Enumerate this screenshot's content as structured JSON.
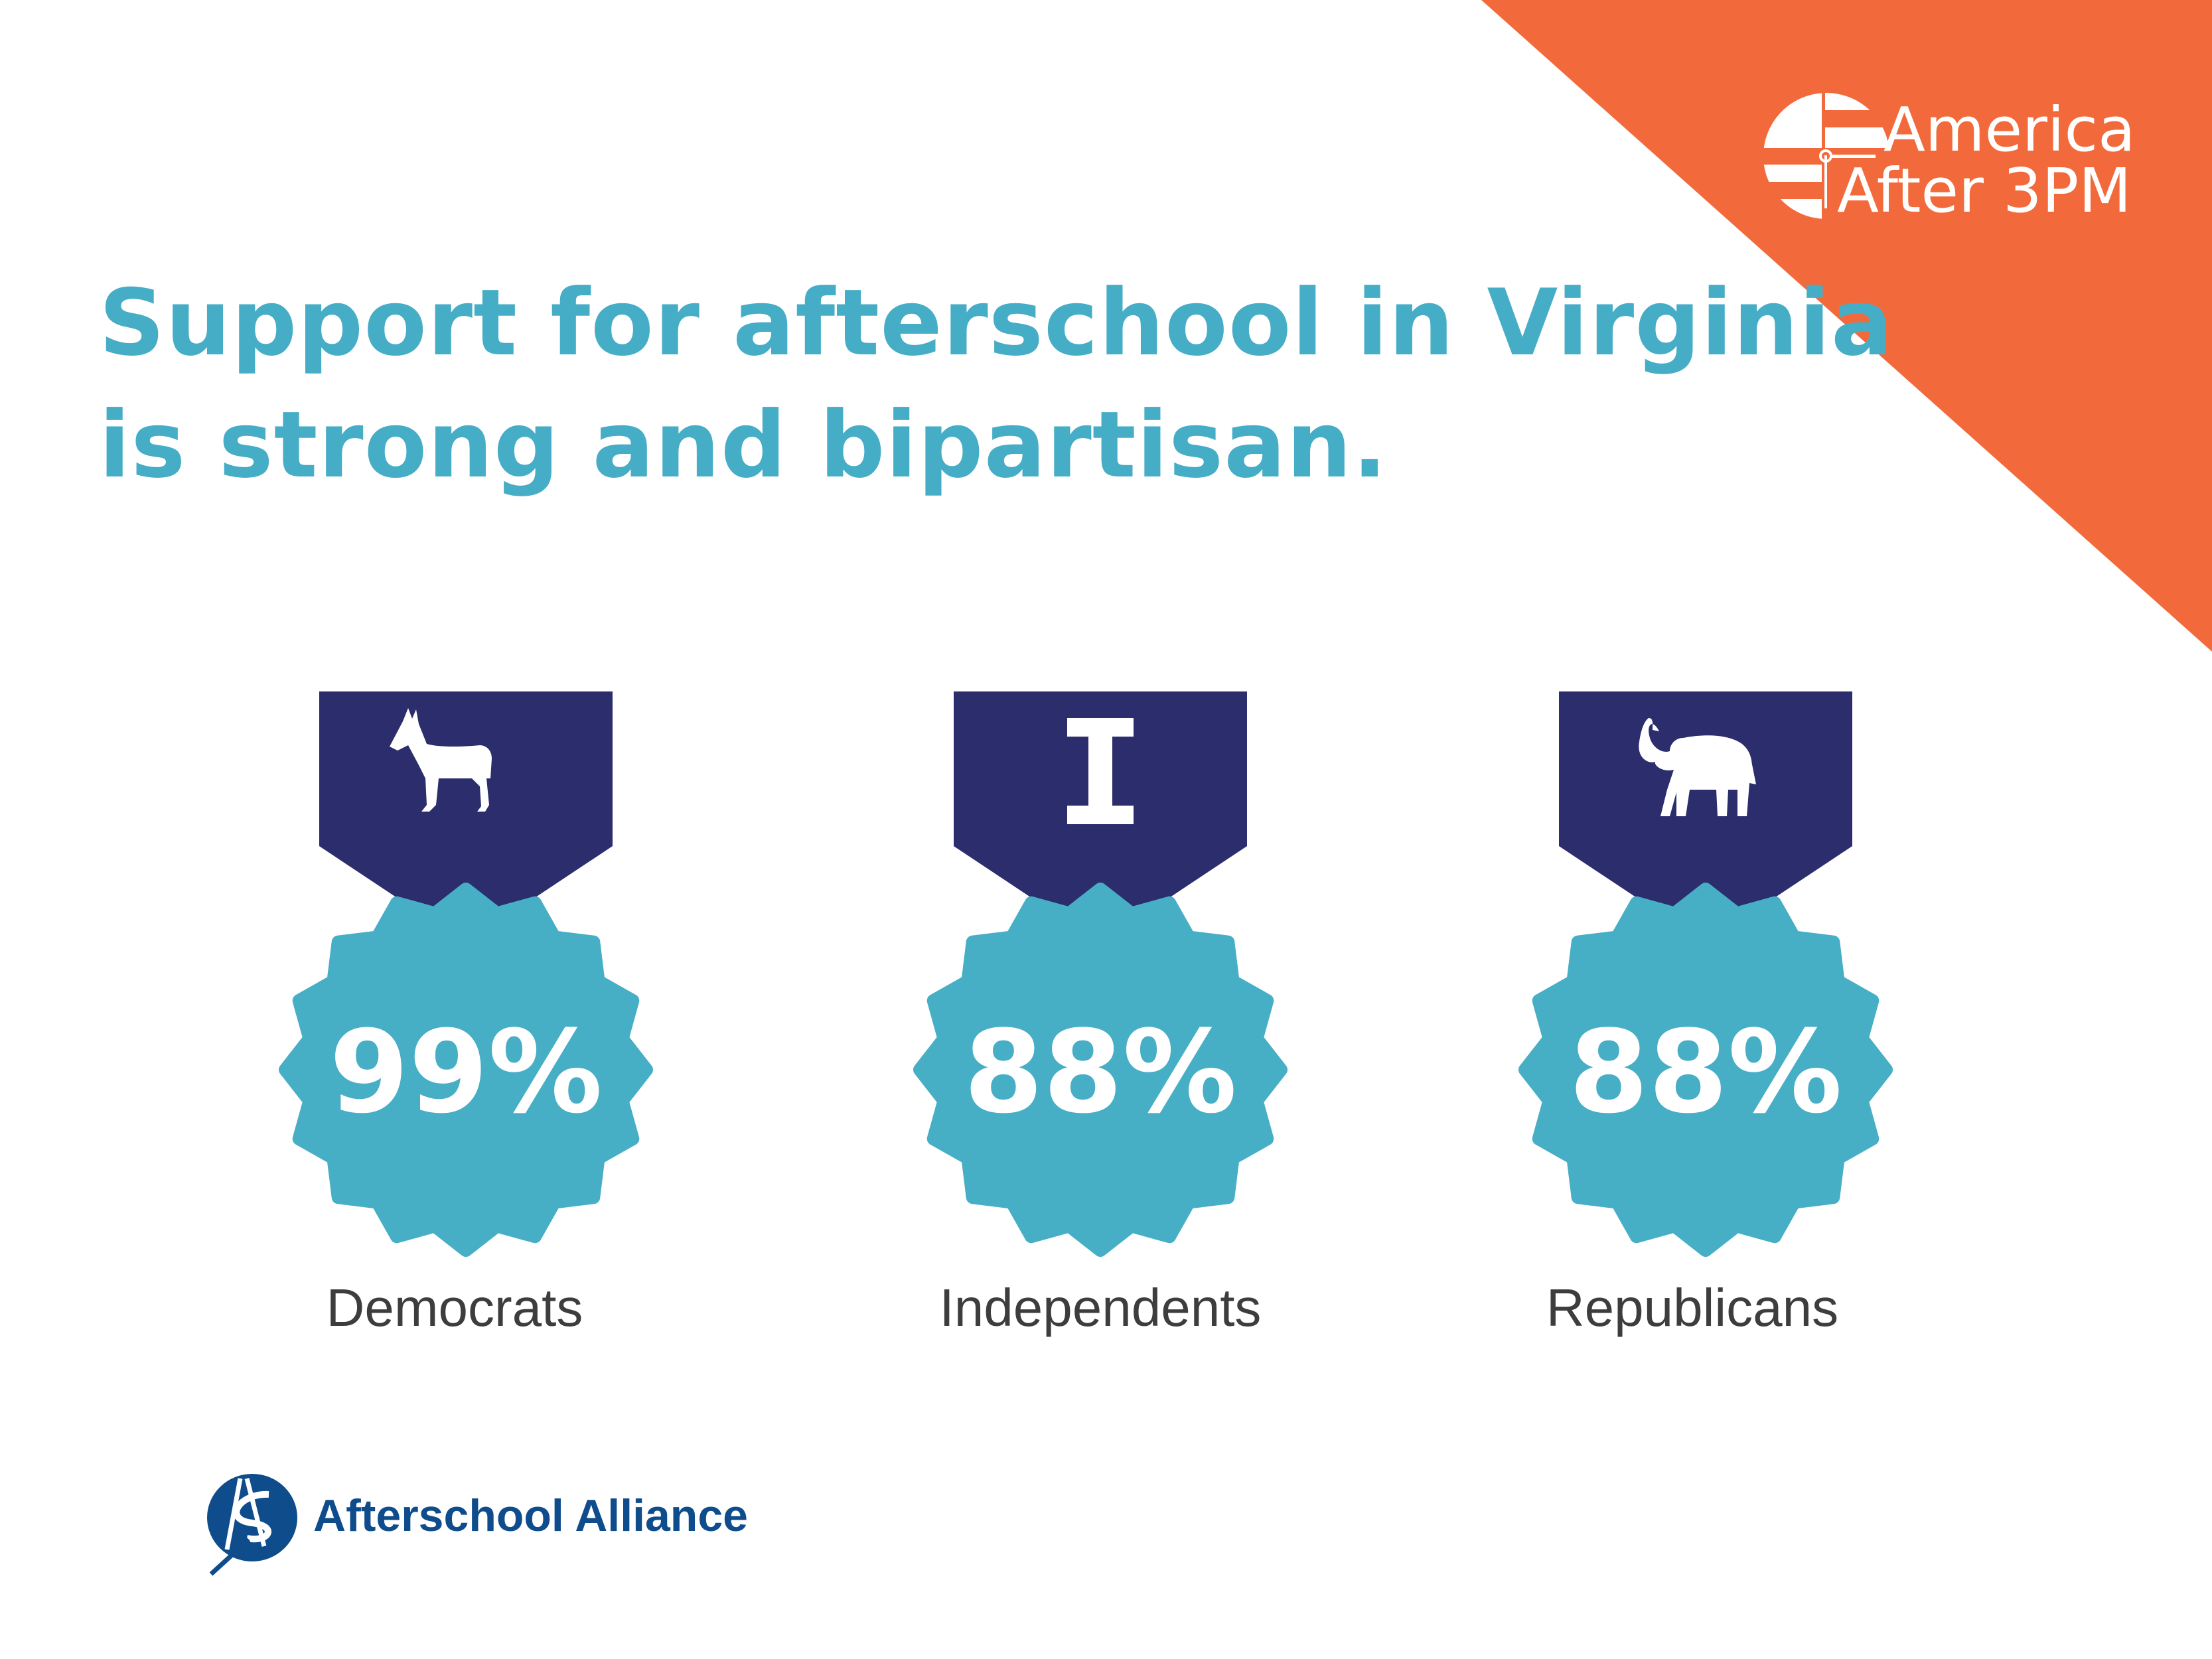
{
  "colors": {
    "orange": "#f26a3b",
    "teal": "#46aec5",
    "navy": "#2b2d6c",
    "title": "#46adc6",
    "label_text": "#3d3d3d",
    "alliance_blue": "#0f4c8c"
  },
  "brand_logo": {
    "line1": "America",
    "line2": "After 3PM"
  },
  "title": {
    "line1": "Support for afterschool in Virginia",
    "line2": "is strong and bipartisan."
  },
  "badges": [
    {
      "label": "Democrats",
      "value": "99%",
      "icon": "donkey-icon"
    },
    {
      "label": "Independents",
      "value": "88%",
      "icon": "letter-i-icon"
    },
    {
      "label": "Republicans",
      "value": "88%",
      "icon": "elephant-icon"
    }
  ],
  "footer_logo": {
    "text": "Afterschool Alliance",
    "icon": "afterschool-alliance-logo-icon"
  }
}
